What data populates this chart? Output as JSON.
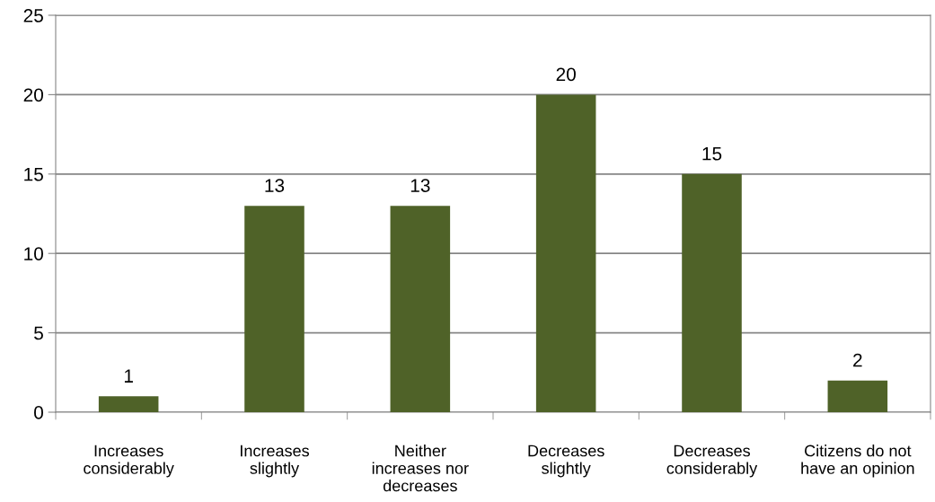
{
  "chart_data": {
    "type": "bar",
    "categories": [
      "Increases\nconsiderably",
      "Increases\nslightly",
      "Neither\nincreases nor\ndecreases",
      "Decreases\nslightly",
      "Decreases\nconsiderably",
      "Citizens do not\nhave an opinion"
    ],
    "values": [
      1,
      13,
      13,
      20,
      15,
      2
    ],
    "color": "#4f6228",
    "ylim": [
      0,
      25
    ],
    "yticks": [
      0,
      5,
      10,
      15,
      20,
      25
    ],
    "grid": "y",
    "data_labels": true,
    "legend": false
  }
}
